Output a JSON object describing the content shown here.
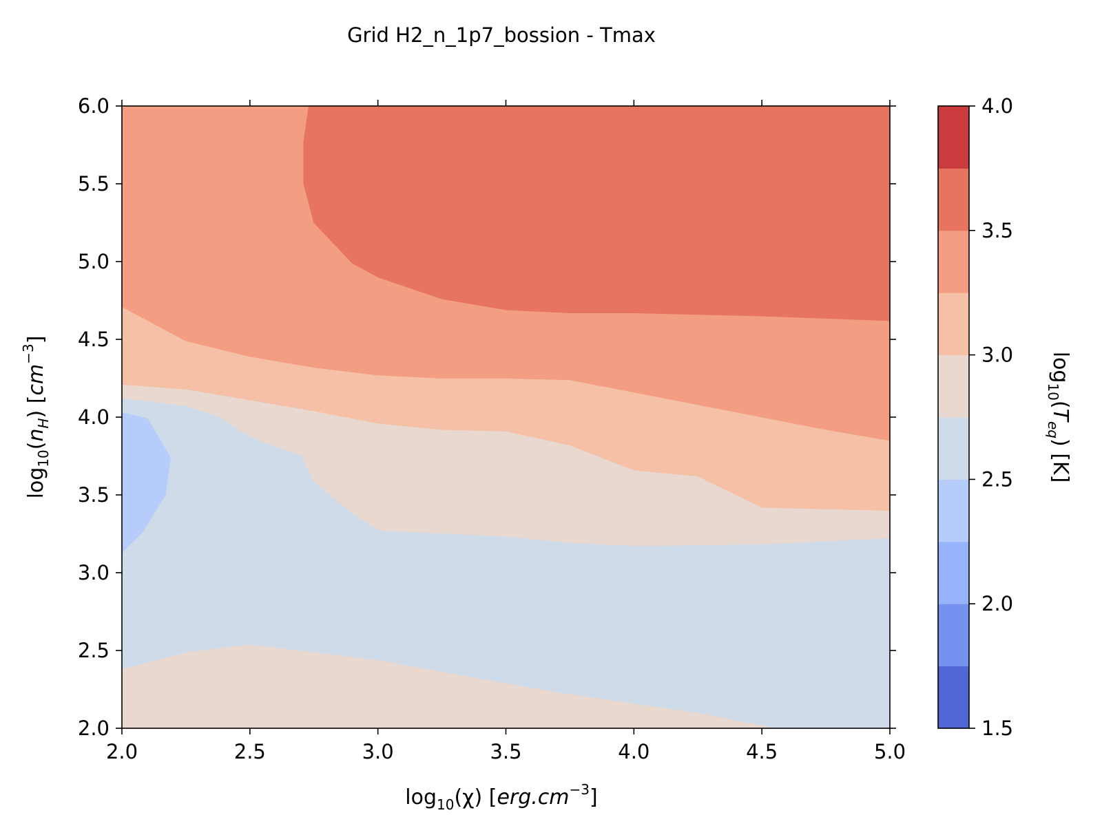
{
  "chart_data": {
    "type": "contour",
    "title": "Grid H2_n_1p7_bossion - Tmax",
    "xlabel": {
      "prefix": "log",
      "sub": "10",
      "arg": "(χ) [",
      "italic": "erg.cm",
      "sup": "−3",
      "suffix": "]"
    },
    "ylabel": {
      "prefix": "log",
      "sub": "10",
      "arg": "(",
      "argItalic": "n",
      "argSub": "H",
      "mid": ") [",
      "italic": "cm",
      "sup": "−3",
      "suffix": "]"
    },
    "colorbar_label": {
      "prefix": "log",
      "sub": "10",
      "arg": "(",
      "argItalic": "T",
      "argSub": "eq",
      "suffix": ") [K]"
    },
    "xlim": [
      2.0,
      5.0
    ],
    "ylim": [
      2.0,
      6.0
    ],
    "xticks": [
      "2.0",
      "2.5",
      "3.0",
      "3.5",
      "4.0",
      "4.5",
      "5.0"
    ],
    "yticks": [
      "2.0",
      "2.5",
      "3.0",
      "3.5",
      "4.0",
      "4.5",
      "5.0",
      "5.5",
      "6.0"
    ],
    "colorbar_ticks": [
      "1.5",
      "2.0",
      "2.5",
      "3.0",
      "3.5",
      "4.0"
    ],
    "colorbar_range": [
      1.5,
      4.0
    ],
    "level_colors": [
      {
        "from": 1.5,
        "to": 1.75,
        "color": "#5167d5"
      },
      {
        "from": 1.75,
        "to": 2.0,
        "color": "#7592ee"
      },
      {
        "from": 2.0,
        "to": 2.25,
        "color": "#96b3fb"
      },
      {
        "from": 2.25,
        "to": 2.5,
        "color": "#b6cdfb"
      },
      {
        "from": 2.5,
        "to": 2.75,
        "color": "#d0dbe9"
      },
      {
        "from": 2.75,
        "to": 3.0,
        "color": "#e9d8d0"
      },
      {
        "from": 3.0,
        "to": 3.25,
        "color": "#f5c0a6"
      },
      {
        "from": 3.25,
        "to": 3.5,
        "color": "#f39e82"
      },
      {
        "from": 3.5,
        "to": 3.75,
        "color": "#e6745f"
      },
      {
        "from": 3.75,
        "to": 4.0,
        "color": "#c93b3c"
      }
    ],
    "regions": [
      {
        "level": "2.75-3.00",
        "color": "#e9d8d0",
        "points": [
          [
            2.0,
            2.0
          ],
          [
            5.0,
            2.0
          ],
          [
            5.0,
            6.0
          ],
          [
            2.0,
            6.0
          ]
        ]
      },
      {
        "level": "2.50-2.75",
        "color": "#d0dbe9",
        "points": [
          [
            2.0,
            2.38
          ],
          [
            2.25,
            2.49
          ],
          [
            2.5,
            2.54
          ],
          [
            3.0,
            2.44
          ],
          [
            3.5,
            2.29
          ],
          [
            3.75,
            2.22
          ],
          [
            4.0,
            2.16
          ],
          [
            4.25,
            2.1
          ],
          [
            4.5,
            2.02
          ],
          [
            4.55,
            2.0
          ],
          [
            5.0,
            2.0
          ],
          [
            5.0,
            3.22
          ],
          [
            4.5,
            3.18
          ],
          [
            4.0,
            3.17
          ],
          [
            3.75,
            3.19
          ],
          [
            3.5,
            3.23
          ],
          [
            3.0,
            3.27
          ],
          [
            2.9,
            3.38
          ],
          [
            2.75,
            3.58
          ],
          [
            2.7,
            3.75
          ],
          [
            2.5,
            3.87
          ],
          [
            2.38,
            4.0
          ],
          [
            2.25,
            4.07
          ],
          [
            2.0,
            4.12
          ]
        ]
      },
      {
        "level": "2.25-2.50",
        "color": "#b6cdfb",
        "points": [
          [
            2.0,
            3.13
          ],
          [
            2.08,
            3.26
          ],
          [
            2.17,
            3.5
          ],
          [
            2.19,
            3.74
          ],
          [
            2.1,
            3.99
          ],
          [
            2.0,
            4.03
          ]
        ]
      },
      {
        "level": "3.00-3.25",
        "color": "#f5c0a6",
        "points": [
          [
            2.0,
            4.21
          ],
          [
            2.25,
            4.18
          ],
          [
            2.5,
            4.11
          ],
          [
            2.75,
            4.04
          ],
          [
            3.0,
            3.96
          ],
          [
            3.25,
            3.92
          ],
          [
            3.5,
            3.91
          ],
          [
            3.75,
            3.82
          ],
          [
            4.0,
            3.66
          ],
          [
            4.25,
            3.62
          ],
          [
            4.5,
            3.42
          ],
          [
            5.0,
            3.4
          ],
          [
            5.0,
            6.0
          ],
          [
            2.0,
            6.0
          ]
        ]
      },
      {
        "level": "3.25-3.50",
        "color": "#f39e82",
        "points": [
          [
            2.0,
            4.71
          ],
          [
            2.25,
            4.49
          ],
          [
            2.5,
            4.39
          ],
          [
            2.75,
            4.32
          ],
          [
            3.0,
            4.27
          ],
          [
            3.25,
            4.25
          ],
          [
            3.5,
            4.25
          ],
          [
            3.75,
            4.24
          ],
          [
            4.0,
            4.16
          ],
          [
            4.25,
            4.08
          ],
          [
            4.5,
            4.0
          ],
          [
            4.75,
            3.92
          ],
          [
            5.0,
            3.85
          ],
          [
            5.0,
            6.0
          ],
          [
            2.0,
            6.0
          ]
        ]
      },
      {
        "level": "3.50-3.75",
        "color": "#e6745f",
        "points": [
          [
            2.73,
            6.0
          ],
          [
            5.0,
            6.0
          ],
          [
            5.0,
            4.62
          ],
          [
            4.5,
            4.65
          ],
          [
            4.0,
            4.67
          ],
          [
            3.75,
            4.67
          ],
          [
            3.5,
            4.69
          ],
          [
            3.25,
            4.76
          ],
          [
            3.0,
            4.9
          ],
          [
            2.9,
            4.99
          ],
          [
            2.75,
            5.25
          ],
          [
            2.71,
            5.5
          ],
          [
            2.71,
            5.77
          ]
        ]
      }
    ]
  }
}
